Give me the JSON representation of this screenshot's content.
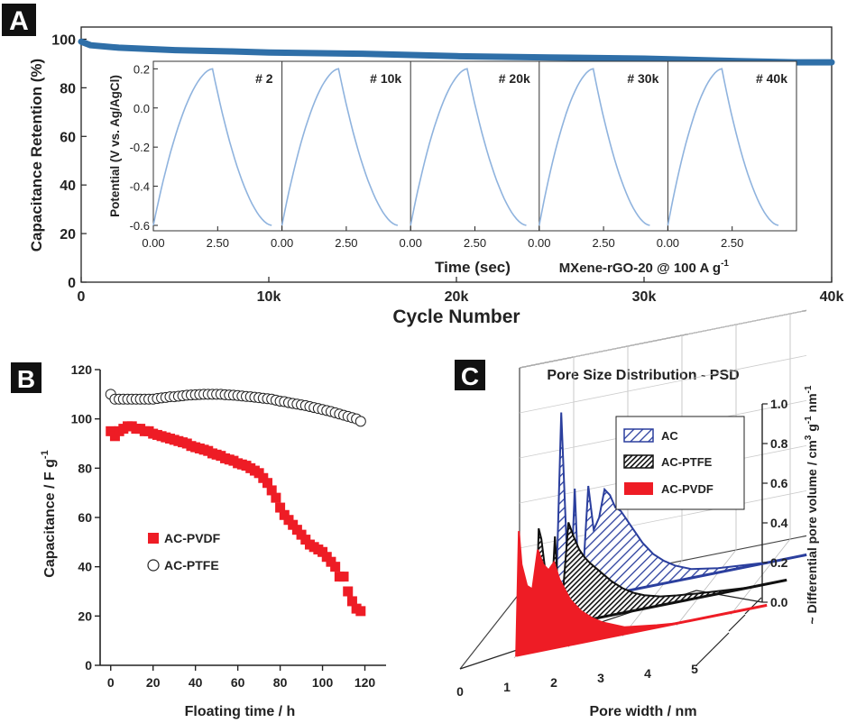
{
  "colors": {
    "blue_series": "#2f6fa8",
    "inset_curve": "#8fb3de",
    "pvdf_red": "#ee1c25",
    "psd_blue": "#2b3f9e",
    "axis": "#222222",
    "panel_label_bg": "#111111",
    "panel_label_text": "#ffffff"
  },
  "chart_data": [
    {
      "type": "line",
      "panel_label": "A",
      "xlabel": "Cycle Number",
      "ylabel": "Capacitance Retention (%)",
      "x_ticks": [
        0,
        10000,
        20000,
        30000,
        40000
      ],
      "x_tick_labels": [
        "0",
        "10k",
        "20k",
        "30k",
        "40k"
      ],
      "y_ticks": [
        0,
        20,
        40,
        60,
        80,
        100
      ],
      "xlim": [
        0,
        40000
      ],
      "ylim": [
        0,
        105
      ],
      "series": [
        {
          "x": [
            0,
            500,
            2000,
            5000,
            8000,
            10000,
            15000,
            20000,
            25000,
            30000,
            35000,
            38000,
            40000
          ],
          "y": [
            99,
            97.5,
            96.5,
            95.5,
            95,
            94.5,
            94,
            93,
            92.5,
            92,
            91,
            90.5,
            90.5
          ]
        }
      ],
      "inset": {
        "type": "line",
        "xlabel": "Time (sec)",
        "ylabel": "Potential (V vs. Ag/AgCl)",
        "y_ticks": [
          0.2,
          0.0,
          -0.2,
          -0.4,
          -0.6
        ],
        "y_tick_labels": [
          "0.2",
          "0.0",
          "-0.2",
          "-0.4",
          "-0.6"
        ],
        "x_tick_labels": [
          "0.00",
          "2.50"
        ],
        "ylim": [
          -0.6,
          0.22
        ],
        "annotation": "MXene-rGO-20 @ 100 A g",
        "annotation_superscript": "-1",
        "segments": [
          {
            "label": "# 2",
            "t_peak": 2.3,
            "t_end": 4.6
          },
          {
            "label": "# 10k",
            "t_peak": 2.2,
            "t_end": 4.5
          },
          {
            "label": "# 20k",
            "t_peak": 2.2,
            "t_end": 4.5
          },
          {
            "label": "# 30k",
            "t_peak": 2.1,
            "t_end": 4.3
          },
          {
            "label": "# 40k",
            "t_peak": 2.1,
            "t_end": 4.3
          }
        ]
      }
    },
    {
      "type": "scatter",
      "panel_label": "B",
      "xlabel": "Floating time / h",
      "ylabel": "Capacitance / F g",
      "ylabel_superscript": "-1",
      "x_ticks": [
        0,
        20,
        40,
        60,
        80,
        100,
        120
      ],
      "y_ticks": [
        0,
        20,
        40,
        60,
        80,
        100,
        120
      ],
      "xlim": [
        -5,
        130
      ],
      "ylim": [
        0,
        120
      ],
      "legend_position": "center-left",
      "series": [
        {
          "name": "AC-PVDF",
          "marker": "filled-square",
          "x": [
            0,
            2,
            4,
            6,
            8,
            10,
            12,
            14,
            16,
            18,
            20,
            22,
            24,
            26,
            28,
            30,
            32,
            34,
            36,
            38,
            40,
            42,
            44,
            46,
            48,
            50,
            52,
            54,
            56,
            58,
            60,
            62,
            64,
            66,
            68,
            70,
            72,
            74,
            76,
            78,
            80,
            82,
            84,
            86,
            88,
            90,
            92,
            94,
            96,
            98,
            100,
            102,
            104,
            106,
            108,
            110,
            112,
            114,
            116,
            118
          ],
          "y": [
            95,
            93,
            95,
            96,
            97,
            97,
            96,
            96,
            95,
            95,
            94,
            93.5,
            93,
            92.5,
            92,
            91.5,
            91,
            90.5,
            90,
            89,
            88.5,
            88,
            87.5,
            87,
            86,
            85.5,
            85,
            84,
            83.5,
            83,
            82,
            81.5,
            81,
            80,
            79,
            78,
            76,
            74,
            71,
            68,
            64,
            61,
            59,
            57,
            55,
            53,
            51,
            49,
            48,
            47,
            46,
            44,
            42,
            40,
            36,
            36,
            30,
            26,
            23,
            22
          ]
        },
        {
          "name": "AC-PTFE",
          "marker": "open-circle",
          "x": [
            0,
            2,
            4,
            6,
            8,
            10,
            12,
            14,
            16,
            18,
            20,
            22,
            24,
            26,
            28,
            30,
            32,
            34,
            36,
            38,
            40,
            42,
            44,
            46,
            48,
            50,
            52,
            54,
            56,
            58,
            60,
            62,
            64,
            66,
            68,
            70,
            72,
            74,
            76,
            78,
            80,
            82,
            84,
            86,
            88,
            90,
            92,
            94,
            96,
            98,
            100,
            102,
            104,
            106,
            108,
            110,
            112,
            114,
            116,
            118
          ],
          "y": [
            110,
            108,
            108,
            108,
            108,
            108,
            108,
            108,
            108,
            108,
            108,
            108.3,
            108.5,
            108.7,
            109,
            109,
            109.2,
            109.4,
            109.6,
            109.7,
            109.8,
            109.9,
            110,
            110,
            110,
            110,
            110,
            109.8,
            109.7,
            109.6,
            109.5,
            109.3,
            109.1,
            109,
            108.8,
            108.6,
            108.4,
            108.2,
            108,
            107.6,
            107.2,
            107,
            106.6,
            106.3,
            106,
            105.7,
            105.4,
            105,
            104.6,
            104.2,
            103.8,
            103.4,
            103,
            102.5,
            102,
            101.5,
            101,
            100.5,
            100,
            99
          ]
        }
      ]
    },
    {
      "type": "area",
      "panel_label": "C",
      "title": "Pore Size Distribution - PSD",
      "xlabel": "Pore width / nm",
      "ylabel": "~ Differential pore volume / cm",
      "ylabel_unit_sup1": "3",
      "ylabel_unit_mid": " g",
      "ylabel_unit_sup2": "-1",
      "ylabel_unit_end": " nm",
      "ylabel_unit_sup3": "-1",
      "x_ticks": [
        0,
        1,
        2,
        3,
        4,
        5
      ],
      "y_ticks": [
        0.0,
        0.2,
        0.4,
        0.6,
        0.8,
        1.0
      ],
      "y_tick_labels": [
        "0.0",
        "0.2",
        "0.4",
        "0.6",
        "0.8",
        "1.0"
      ],
      "legend_position": "top-center",
      "series": [
        {
          "name": "AC",
          "fill": "hatched-blue",
          "x": [
            1.0,
            1.1,
            1.2,
            1.3,
            1.35,
            1.4,
            1.5,
            1.6,
            1.7,
            1.8,
            1.9,
            2.0,
            2.1,
            2.2,
            2.3,
            2.4,
            2.6,
            2.8,
            3.0,
            3.2,
            3.5,
            4.0,
            4.5,
            5.0
          ],
          "y": [
            0.0,
            0.85,
            0.25,
            0.2,
            0.5,
            0.2,
            0.1,
            0.5,
            0.3,
            0.35,
            0.47,
            0.44,
            0.38,
            0.36,
            0.32,
            0.28,
            0.2,
            0.14,
            0.1,
            0.07,
            0.04,
            0.02,
            0.01,
            0.0
          ]
        },
        {
          "name": "AC-PTFE",
          "fill": "hatched-black",
          "x": [
            1.0,
            1.05,
            1.1,
            1.2,
            1.3,
            1.35,
            1.4,
            1.5,
            1.6,
            1.7,
            1.8,
            1.9,
            2.0,
            2.2,
            2.4,
            2.6,
            2.8,
            3.0,
            3.3,
            3.6,
            4.0,
            4.5,
            5.0
          ],
          "y": [
            0.0,
            0.45,
            0.4,
            0.2,
            0.18,
            0.4,
            0.2,
            0.15,
            0.45,
            0.38,
            0.32,
            0.28,
            0.25,
            0.2,
            0.15,
            0.11,
            0.08,
            0.06,
            0.04,
            0.03,
            0.02,
            0.01,
            0.0
          ]
        },
        {
          "name": "AC-PVDF",
          "fill": "solid-red",
          "x": [
            1.0,
            1.05,
            1.1,
            1.2,
            1.3,
            1.4,
            1.5,
            1.6,
            1.7,
            1.8,
            1.9,
            2.0,
            2.2,
            2.4,
            2.6,
            2.8,
            3.0,
            3.3,
            3.6,
            4.0,
            4.5,
            5.0
          ],
          "y": [
            0.0,
            0.55,
            0.4,
            0.3,
            0.28,
            0.45,
            0.38,
            0.35,
            0.38,
            0.3,
            0.25,
            0.2,
            0.14,
            0.1,
            0.07,
            0.05,
            0.03,
            0.02,
            0.01,
            0.0,
            0.0,
            0.0
          ]
        }
      ]
    }
  ]
}
